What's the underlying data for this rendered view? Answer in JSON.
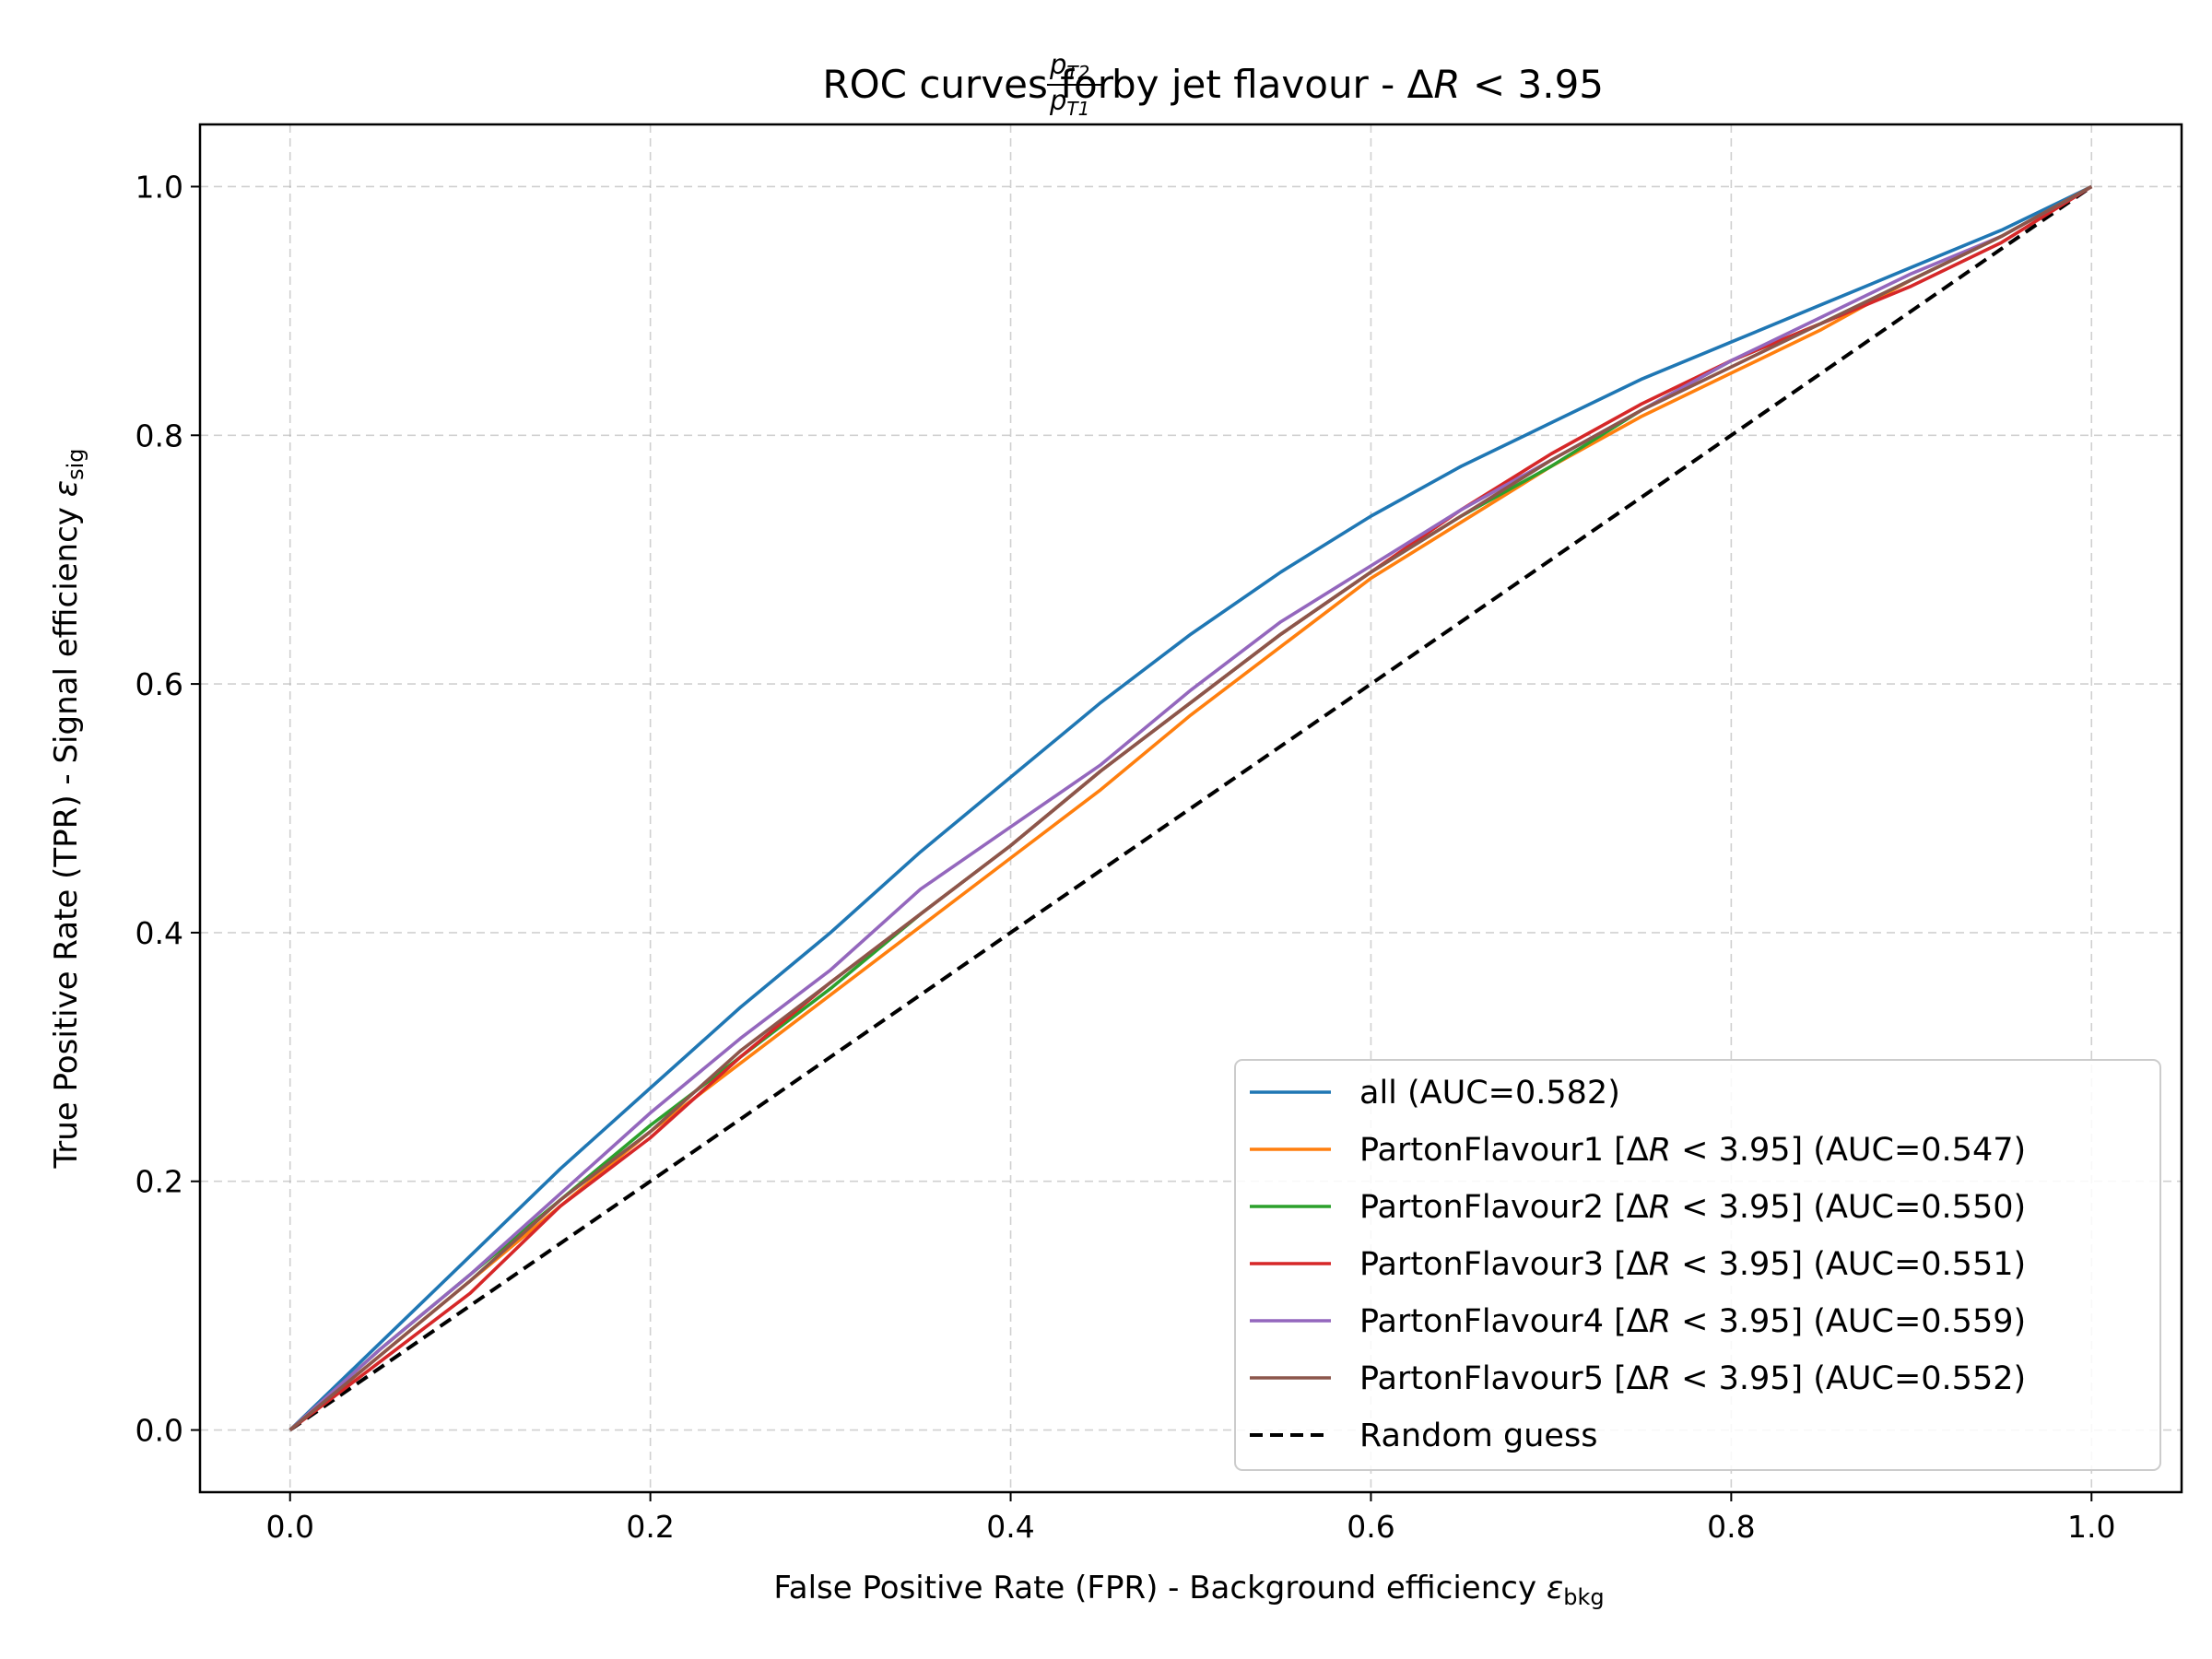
{
  "chart_data": {
    "type": "line",
    "title": {
      "prefix": "ROC curves for ",
      "frac_num_base": "p",
      "frac_num_sub": "T2",
      "frac_den_base": "p",
      "frac_den_sub": "T1",
      "suffix_pre": " by jet flavour - Δ",
      "suffix_var": "R",
      "suffix_post": " < 3.95"
    },
    "xlabel": {
      "text": "False Positive Rate (FPR) - Background efficiency ",
      "symbol": "ε",
      "sub": "bkg"
    },
    "ylabel": {
      "text": "True Positive Rate (TPR) - Signal efficiency ",
      "symbol": "ε",
      "sub": "sig"
    },
    "xlim": [
      -0.05,
      1.05
    ],
    "ylim": [
      -0.05,
      1.05
    ],
    "xticks": [
      "0.0",
      "0.2",
      "0.4",
      "0.6",
      "0.8",
      "1.0"
    ],
    "yticks": [
      "0.0",
      "0.2",
      "0.4",
      "0.6",
      "0.8",
      "1.0"
    ],
    "grid": true,
    "legend_position": "lower-right",
    "series": [
      {
        "label": {
          "pre": "all (AUC=0.582)",
          "var": "",
          "post": ""
        },
        "color": "#1f77b4",
        "dash": false,
        "x": [
          0,
          0.05,
          0.1,
          0.15,
          0.2,
          0.25,
          0.3,
          0.35,
          0.4,
          0.45,
          0.5,
          0.55,
          0.6,
          0.65,
          0.7,
          0.75,
          0.8,
          0.85,
          0.9,
          0.95,
          1.0
        ],
        "y": [
          0,
          0.07,
          0.14,
          0.21,
          0.275,
          0.34,
          0.4,
          0.465,
          0.525,
          0.585,
          0.64,
          0.69,
          0.735,
          0.775,
          0.81,
          0.845,
          0.875,
          0.905,
          0.935,
          0.965,
          1.0
        ]
      },
      {
        "label": {
          "pre": "PartonFlavour1 [Δ",
          "var": "R",
          "post": " < 3.95] (AUC=0.547)"
        },
        "color": "#ff7f0e",
        "dash": false,
        "x": [
          0,
          0.05,
          0.1,
          0.15,
          0.2,
          0.25,
          0.3,
          0.35,
          0.4,
          0.45,
          0.5,
          0.55,
          0.6,
          0.65,
          0.7,
          0.75,
          0.8,
          0.85,
          0.9,
          0.95,
          1.0
        ],
        "y": [
          0,
          0.06,
          0.12,
          0.18,
          0.24,
          0.295,
          0.35,
          0.405,
          0.46,
          0.515,
          0.575,
          0.63,
          0.685,
          0.73,
          0.775,
          0.815,
          0.85,
          0.885,
          0.925,
          0.96,
          1.0
        ]
      },
      {
        "label": {
          "pre": "PartonFlavour2 [Δ",
          "var": "R",
          "post": " < 3.95] (AUC=0.550)"
        },
        "color": "#2ca02c",
        "dash": false,
        "x": [
          0,
          0.05,
          0.1,
          0.15,
          0.2,
          0.25,
          0.3,
          0.35,
          0.4,
          0.45,
          0.5,
          0.55,
          0.6,
          0.65,
          0.7,
          0.75,
          0.8,
          0.85,
          0.9,
          0.95,
          1.0
        ],
        "y": [
          0,
          0.065,
          0.125,
          0.185,
          0.245,
          0.3,
          0.355,
          0.415,
          0.47,
          0.53,
          0.585,
          0.64,
          0.69,
          0.735,
          0.775,
          0.82,
          0.86,
          0.89,
          0.925,
          0.96,
          1.0
        ]
      },
      {
        "label": {
          "pre": "PartonFlavour3 [Δ",
          "var": "R",
          "post": " < 3.95] (AUC=0.551)"
        },
        "color": "#d62728",
        "dash": false,
        "x": [
          0,
          0.05,
          0.1,
          0.15,
          0.2,
          0.25,
          0.3,
          0.35,
          0.4,
          0.45,
          0.5,
          0.55,
          0.6,
          0.65,
          0.7,
          0.75,
          0.8,
          0.85,
          0.9,
          0.95,
          1.0
        ],
        "y": [
          0,
          0.055,
          0.11,
          0.18,
          0.235,
          0.3,
          0.36,
          0.415,
          0.47,
          0.53,
          0.585,
          0.64,
          0.69,
          0.74,
          0.785,
          0.825,
          0.86,
          0.89,
          0.92,
          0.955,
          1.0
        ]
      },
      {
        "label": {
          "pre": "PartonFlavour4 [Δ",
          "var": "R",
          "post": " < 3.95] (AUC=0.559)"
        },
        "color": "#9467bd",
        "dash": false,
        "x": [
          0,
          0.05,
          0.1,
          0.15,
          0.2,
          0.25,
          0.3,
          0.35,
          0.4,
          0.45,
          0.5,
          0.55,
          0.6,
          0.65,
          0.7,
          0.75,
          0.8,
          0.85,
          0.9,
          0.95,
          1.0
        ],
        "y": [
          0,
          0.065,
          0.125,
          0.19,
          0.255,
          0.315,
          0.37,
          0.435,
          0.485,
          0.535,
          0.595,
          0.65,
          0.695,
          0.74,
          0.78,
          0.82,
          0.86,
          0.895,
          0.93,
          0.96,
          1.0
        ]
      },
      {
        "label": {
          "pre": "PartonFlavour5 [Δ",
          "var": "R",
          "post": " < 3.95] (AUC=0.552)"
        },
        "color": "#8c564b",
        "dash": false,
        "x": [
          0,
          0.05,
          0.1,
          0.15,
          0.2,
          0.25,
          0.3,
          0.35,
          0.4,
          0.45,
          0.5,
          0.55,
          0.6,
          0.65,
          0.7,
          0.75,
          0.8,
          0.85,
          0.9,
          0.95,
          1.0
        ],
        "y": [
          0,
          0.06,
          0.12,
          0.185,
          0.24,
          0.305,
          0.36,
          0.415,
          0.47,
          0.53,
          0.585,
          0.64,
          0.69,
          0.735,
          0.78,
          0.82,
          0.855,
          0.89,
          0.925,
          0.96,
          1.0
        ]
      },
      {
        "label": {
          "pre": "Random guess",
          "var": "",
          "post": ""
        },
        "color": "#000000",
        "dash": true,
        "x": [
          0,
          1.0
        ],
        "y": [
          0,
          1.0
        ]
      }
    ]
  }
}
